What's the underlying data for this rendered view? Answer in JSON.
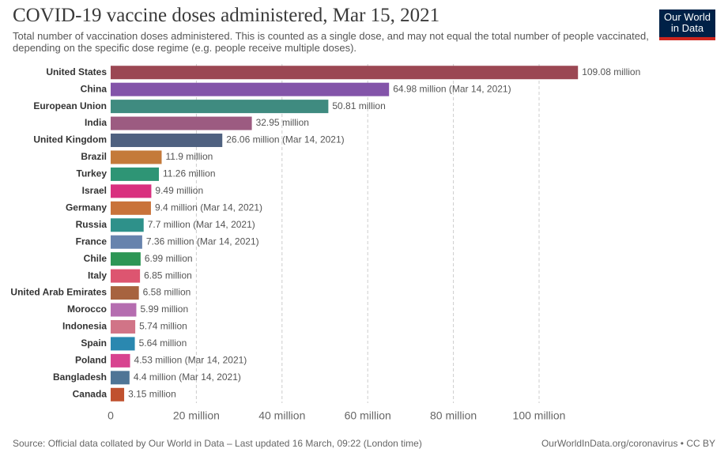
{
  "chart_data": {
    "type": "hbar",
    "title": "COVID-19 vaccine doses administered, Mar 15, 2021",
    "subtitle": "Total number of vaccination doses administered. This is counted as a single dose, and may not equal the total number of people vaccinated, depending on the specific dose regime (e.g. people receive multiple doses).",
    "logo": "Our World in Data",
    "source": "Source: Official data collated by Our World in Data – Last updated 16 March, 09:22 (London time)",
    "credit": "OurWorldInData.org/coronavirus • CC BY",
    "categories": [
      "United States",
      "China",
      "European Union",
      "India",
      "United Kingdom",
      "Brazil",
      "Turkey",
      "Israel",
      "Germany",
      "Russia",
      "France",
      "Chile",
      "Italy",
      "United Arab Emirates",
      "Morocco",
      "Indonesia",
      "Spain",
      "Poland",
      "Bangladesh",
      "Canada"
    ],
    "values": [
      109.08,
      64.98,
      50.81,
      32.95,
      26.06,
      11.9,
      11.26,
      9.49,
      9.4,
      7.7,
      7.36,
      6.99,
      6.85,
      6.58,
      5.99,
      5.74,
      5.64,
      4.53,
      4.4,
      3.15
    ],
    "value_labels": [
      "109.08 million",
      "64.98 million (Mar 14, 2021)",
      "50.81 million",
      "32.95 million",
      "26.06 million (Mar 14, 2021)",
      "11.9 million",
      "11.26 million",
      "9.49 million",
      "9.4 million (Mar 14, 2021)",
      "7.7 million (Mar 14, 2021)",
      "7.36 million (Mar 14, 2021)",
      "6.99 million",
      "6.85 million",
      "6.58 million",
      "5.99 million",
      "5.74 million",
      "5.64 million",
      "4.53 million (Mar 14, 2021)",
      "4.4 million (Mar 14, 2021)",
      "3.15 million"
    ],
    "colors": [
      "#9b4753",
      "#8354a9",
      "#3f8b80",
      "#9c5b81",
      "#4f6180",
      "#c47a3a",
      "#2e9575",
      "#d9307f",
      "#c9733a",
      "#2e918a",
      "#6783ad",
      "#2d9655",
      "#dd5570",
      "#a7633f",
      "#b56db0",
      "#d17487",
      "#2a88b0",
      "#d8438f",
      "#4f7596",
      "#c0512f"
    ],
    "xlim": [
      0,
      110
    ],
    "xticks": [
      0,
      {
        "value": 20,
        "label": "20 million"
      },
      {
        "value": 40,
        "label": "40 million"
      },
      {
        "value": 60,
        "label": "60 million"
      },
      {
        "value": 80,
        "label": "80 million"
      },
      {
        "value": 100,
        "label": "100 million"
      }
    ],
    "grid": true
  }
}
